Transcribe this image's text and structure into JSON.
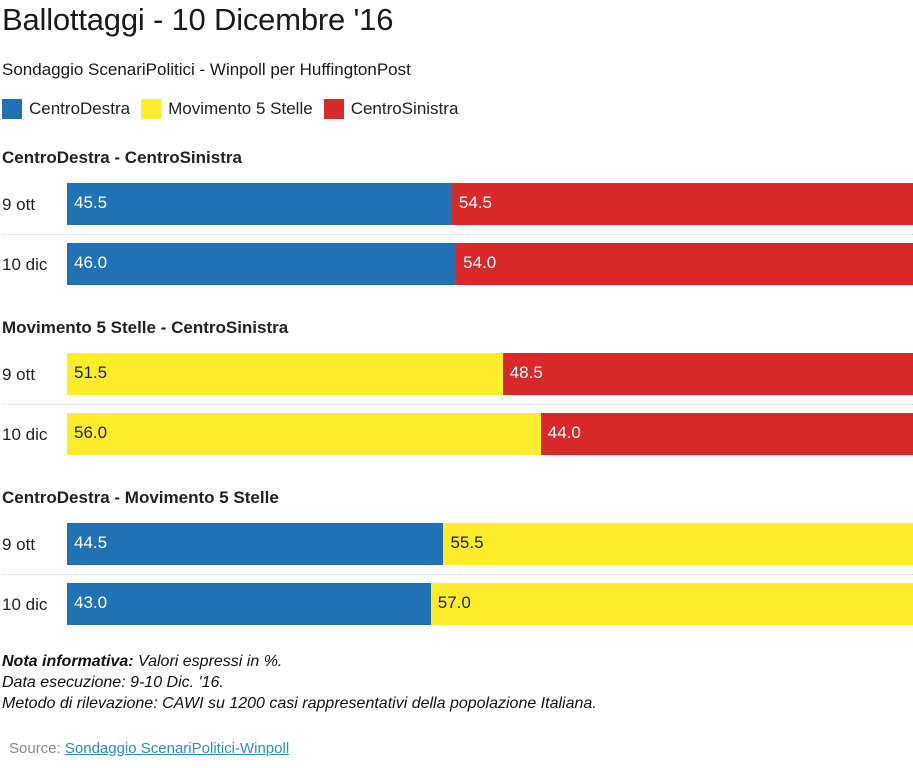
{
  "title": "Ballottaggi - 10 Dicembre '16",
  "subtitle": "Sondaggio ScenariPolitici - Winpoll per HuffingtonPost",
  "legend": [
    {
      "name": "CentroDestra",
      "color": "#2172b4"
    },
    {
      "name": "Movimento 5 Stelle",
      "color": "#fdec2a"
    },
    {
      "name": "CentroSinistra",
      "color": "#d8282a"
    }
  ],
  "chart_data": {
    "type": "bar",
    "stacked": true,
    "orientation": "horizontal",
    "xlim": [
      0,
      100
    ],
    "groups": [
      {
        "title": "CentroDestra - CentroSinistra",
        "rows": [
          {
            "label": "9 ott",
            "segments": [
              {
                "series": "CentroDestra",
                "value": 45.5,
                "label": "45.5"
              },
              {
                "series": "CentroSinistra",
                "value": 54.5,
                "label": "54.5"
              }
            ]
          },
          {
            "label": "10 dic",
            "segments": [
              {
                "series": "CentroDestra",
                "value": 46.0,
                "label": "46.0"
              },
              {
                "series": "CentroSinistra",
                "value": 54.0,
                "label": "54.0"
              }
            ]
          }
        ]
      },
      {
        "title": "Movimento 5 Stelle - CentroSinistra",
        "rows": [
          {
            "label": "9 ott",
            "segments": [
              {
                "series": "Movimento 5 Stelle",
                "value": 51.5,
                "label": "51.5"
              },
              {
                "series": "CentroSinistra",
                "value": 48.5,
                "label": "48.5"
              }
            ]
          },
          {
            "label": "10 dic",
            "segments": [
              {
                "series": "Movimento 5 Stelle",
                "value": 56.0,
                "label": "56.0"
              },
              {
                "series": "CentroSinistra",
                "value": 44.0,
                "label": "44.0"
              }
            ]
          }
        ]
      },
      {
        "title": "CentroDestra - Movimento 5 Stelle",
        "rows": [
          {
            "label": "9 ott",
            "segments": [
              {
                "series": "CentroDestra",
                "value": 44.5,
                "label": "44.5"
              },
              {
                "series": "Movimento 5 Stelle",
                "value": 55.5,
                "label": "55.5"
              }
            ]
          },
          {
            "label": "10 dic",
            "segments": [
              {
                "series": "CentroDestra",
                "value": 43.0,
                "label": "43.0"
              },
              {
                "series": "Movimento 5 Stelle",
                "value": 57.0,
                "label": "57.0"
              }
            ]
          }
        ]
      }
    ]
  },
  "notes": {
    "line1_bold": "Nota informativa:",
    "line1_rest": " Valori espressi in %.",
    "line2": "Data esecuzione: 9-10 Dic. '16.",
    "line3": "Metodo di rilevazione: CAWI su 1200 casi rappresentativi della popolazione Italiana."
  },
  "source": {
    "prefix": "Source: ",
    "link_text": "Sondaggio ScenariPolitici-Winpoll"
  }
}
